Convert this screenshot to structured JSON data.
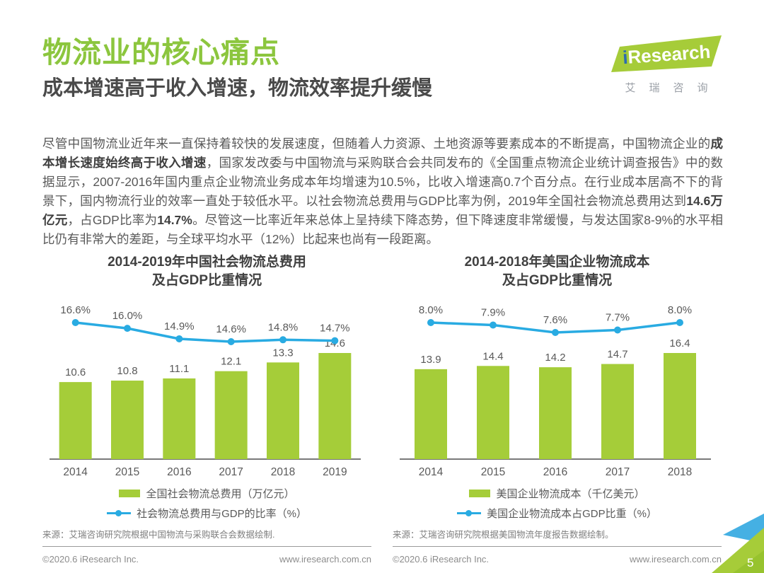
{
  "page": {
    "title": "物流业的核心痛点",
    "subtitle": "成本增速高于收入增速，物流效率提升缓慢",
    "page_number": "5"
  },
  "logo": {
    "brand_i": "i",
    "brand_rest": "Research",
    "chinese": "艾瑞咨询"
  },
  "paragraph": {
    "segments": [
      {
        "text": "尽管中国物流业近年来一直保持着较快的发展速度，但随着人力资源、土地资源等要素成本的不断提高，中国物流企业的",
        "bold": false
      },
      {
        "text": "成本增长速度始终高于收入增速",
        "bold": true
      },
      {
        "text": "，国家发改委与中国物流与采购联合会共同发布的《全国重点物流企业统计调查报告》中的数据显示，2007-2016年国内重点企业物流业务成本年均增速为10.5%，比收入增速高0.7个百分点。在行业成本居高不下的背景下，国内物流行业的效率一直处于较低水平。以社会物流总费用与GDP比率为例，2019年全国社会物流总费用达到",
        "bold": false
      },
      {
        "text": "14.6万亿元",
        "bold": true
      },
      {
        "text": "，占GDP比率为",
        "bold": false
      },
      {
        "text": "14.7%",
        "bold": true
      },
      {
        "text": "。尽管这一比率近年来总体上呈持续下降态势，但下降速度非常缓慢，与发达国家8-9%的水平相比仍有非常大的差距，与全球平均水平（12%）比起来也尚有一段距离。",
        "bold": false
      }
    ]
  },
  "colors": {
    "title_green": "#8cc63e",
    "bar_green": "#a5cd39",
    "line_blue": "#29abe2",
    "axis_gray": "#4d4d4d",
    "label_gray": "#595959",
    "corner_blue": "#45b0e3",
    "corner_green": "#a6cc39",
    "corner_green_dark": "#97c32e",
    "logo_green": "#a6cc39",
    "logo_blue": "#2d6bb0"
  },
  "chart_data": [
    {
      "type": "bar+line",
      "title_line1": "2014-2019年中国社会物流总费用",
      "title_line2": "及占GDP比重情况",
      "categories": [
        "2014",
        "2015",
        "2016",
        "2017",
        "2018",
        "2019"
      ],
      "series": [
        {
          "name": "全国社会物流总费用（万亿元）",
          "type": "bar",
          "values": [
            10.6,
            10.8,
            11.1,
            12.1,
            13.3,
            14.6
          ]
        },
        {
          "name": "社会物流总费用与GDP的比率（%）",
          "type": "line",
          "values": [
            16.6,
            16.0,
            14.9,
            14.6,
            14.8,
            14.7
          ]
        }
      ],
      "grid": false,
      "legend_position": "bottom",
      "source": "来源：艾瑞咨询研究院根据中国物流与采购联合会数据绘制."
    },
    {
      "type": "bar+line",
      "title_line1": "2014-2018年美国企业物流成本",
      "title_line2": "及占GDP比重情况",
      "categories": [
        "2014",
        "2015",
        "2016",
        "2017",
        "2018"
      ],
      "series": [
        {
          "name": "美国企业物流成本（千亿美元）",
          "type": "bar",
          "values": [
            13.9,
            14.4,
            14.2,
            14.7,
            16.4
          ]
        },
        {
          "name": "美国企业物流成本占GDP比重（%）",
          "type": "line",
          "values": [
            8.0,
            7.9,
            7.6,
            7.7,
            8.0
          ]
        }
      ],
      "grid": false,
      "legend_position": "bottom",
      "source": "来源：艾瑞咨询研究院根据美国物流年度报告数据绘制。"
    }
  ],
  "footer": {
    "copyright": "©2020.6 iResearch Inc.",
    "website": "www.iresearch.com.cn"
  }
}
